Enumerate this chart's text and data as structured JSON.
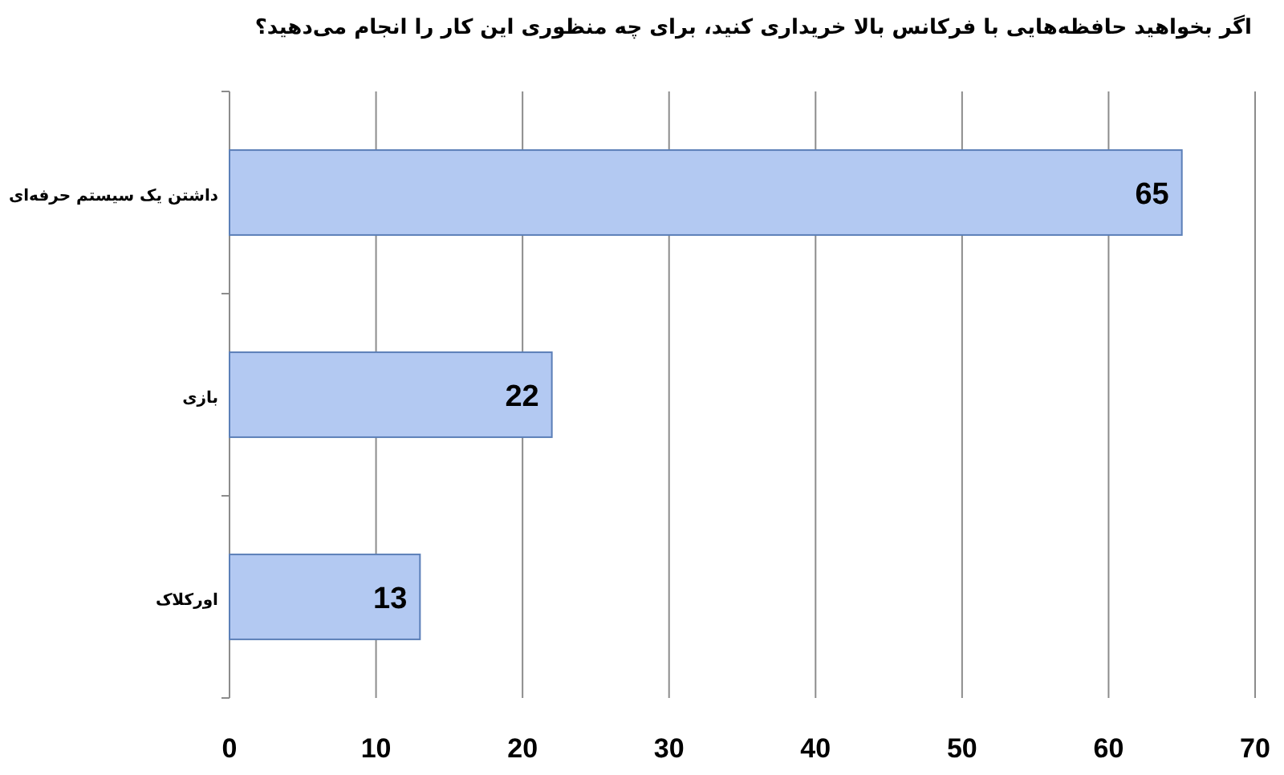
{
  "chart_data": {
    "type": "bar",
    "orientation": "horizontal",
    "title": "اگر بخواهید حافظه‌هایی با فرکانس بالا خریداری کنید، برای چه منظوری این کار را انجام می‌دهید؟",
    "categories": [
      "داشتن یک سیستم حرفه‌ای",
      "بازی",
      "اورکلاک"
    ],
    "values": [
      65,
      22,
      13
    ],
    "color": "#b3c9f2",
    "data_labels": true,
    "xlim": [
      0,
      70
    ],
    "xticks": [
      0,
      10,
      20,
      30,
      40,
      50,
      60,
      70
    ],
    "grid": "x"
  }
}
